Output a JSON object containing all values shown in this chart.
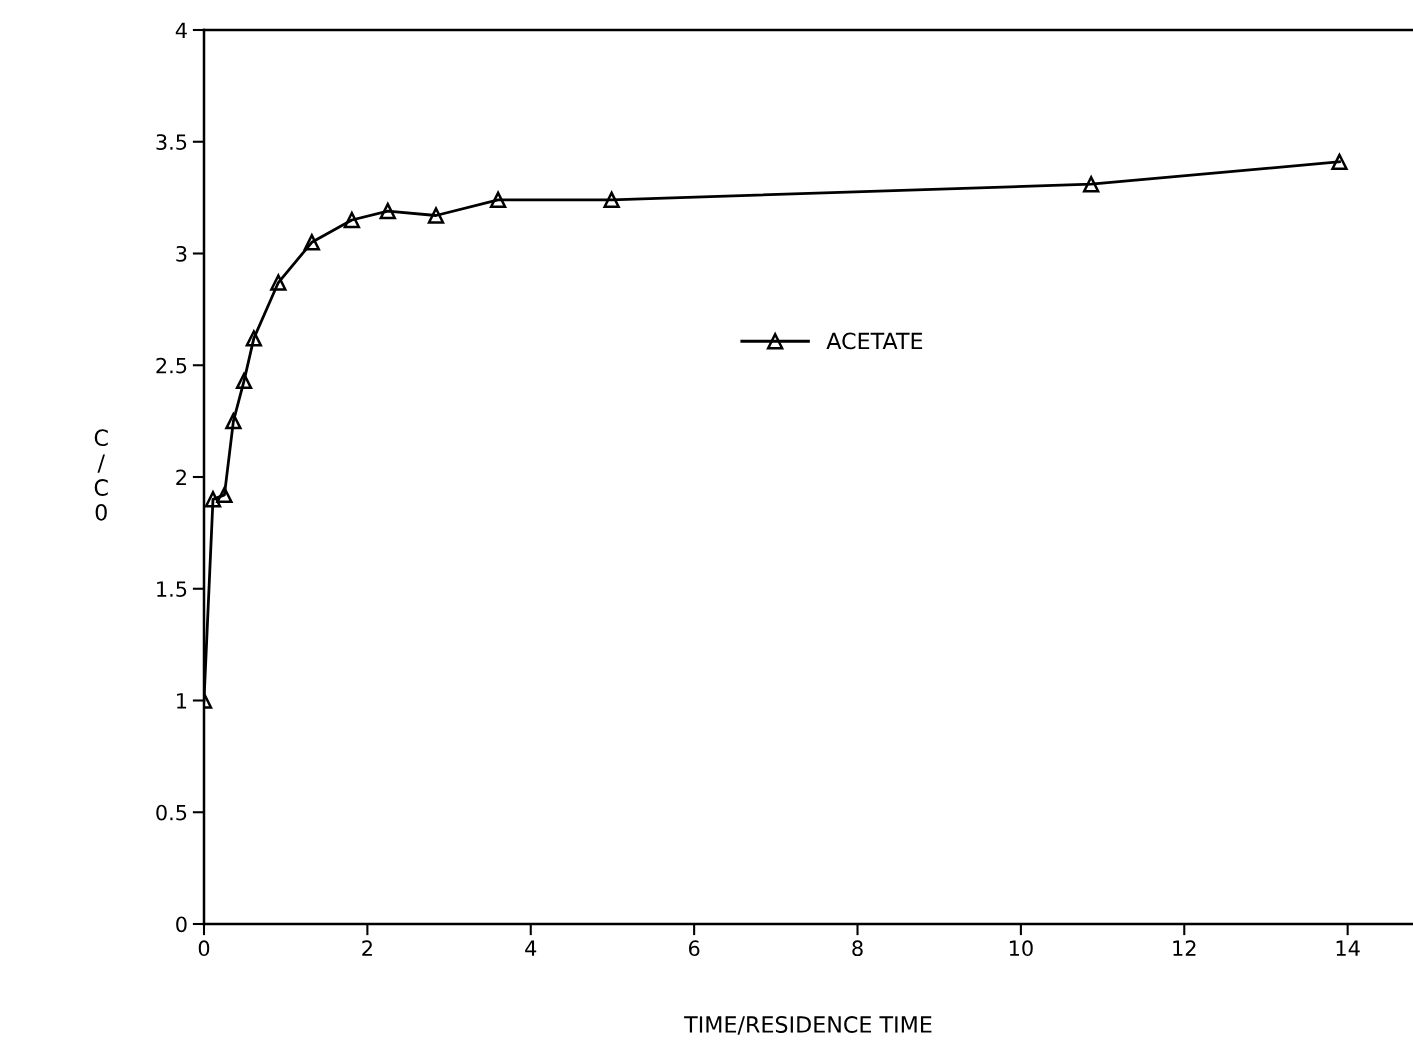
{
  "chart_data": {
    "type": "line",
    "xlabel": "TIME/RESIDENCE TIME",
    "ylabel": "C/C0",
    "x": [
      0,
      0.11,
      0.25,
      0.36,
      0.49,
      0.61,
      0.91,
      1.32,
      1.81,
      2.25,
      2.84,
      3.6,
      4.99,
      10.86,
      13.9
    ],
    "series": [
      {
        "name": "ACETATE",
        "color": "#000000",
        "values": [
          1.0,
          1.9,
          1.92,
          2.25,
          2.43,
          2.62,
          2.87,
          3.05,
          3.15,
          3.19,
          3.17,
          3.24,
          3.24,
          3.31,
          3.41
        ]
      }
    ],
    "xlim": [
      0,
      14.8
    ],
    "ylim": [
      0,
      4
    ],
    "xticks": [
      0,
      2,
      4,
      6,
      8,
      10,
      12,
      14
    ],
    "yticks": [
      0,
      0.5,
      1,
      1.5,
      2,
      2.5,
      3,
      3.5,
      4
    ],
    "marker": "triangle",
    "line_style": "solid",
    "grid": false,
    "legend": "center"
  }
}
